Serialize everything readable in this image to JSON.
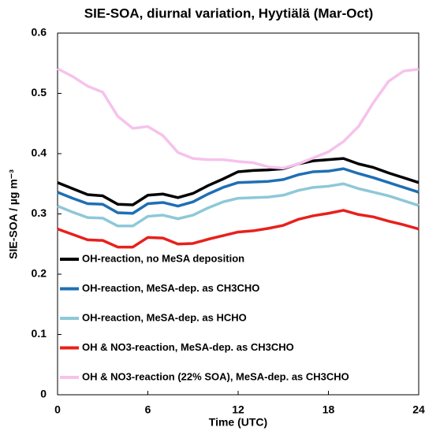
{
  "chart_data": {
    "type": "line",
    "title": "SIE-SOA, diurnal variation, Hyytiälä (Mar-Oct)",
    "x_label": "Time (UTC)",
    "y_label": "SIE-SOA / µg m⁻³",
    "x": [
      0,
      1,
      2,
      3,
      4,
      5,
      6,
      7,
      8,
      9,
      10,
      11,
      12,
      13,
      14,
      15,
      16,
      17,
      18,
      19,
      20,
      21,
      22,
      23,
      24
    ],
    "xlim": [
      0,
      24
    ],
    "xticks": [
      0,
      6,
      12,
      18,
      24
    ],
    "ylim": [
      0,
      0.6
    ],
    "yticks": [
      0,
      0.1,
      0.2,
      0.3,
      0.4,
      0.5,
      0.6
    ],
    "grid": false,
    "legend": "lower left",
    "series": [
      {
        "name": "OH-reaction, no MeSA deposition",
        "color": "#000000",
        "values": [
          0.352,
          0.342,
          0.332,
          0.33,
          0.316,
          0.315,
          0.331,
          0.333,
          0.327,
          0.334,
          0.347,
          0.358,
          0.37,
          0.372,
          0.373,
          0.375,
          0.383,
          0.388,
          0.39,
          0.392,
          0.383,
          0.377,
          0.368,
          0.36,
          0.352
        ]
      },
      {
        "name": "OH-reaction, MeSA-dep. as CH3CHO",
        "color": "#1f6fb4",
        "values": [
          0.336,
          0.326,
          0.317,
          0.316,
          0.302,
          0.301,
          0.317,
          0.319,
          0.313,
          0.32,
          0.333,
          0.344,
          0.352,
          0.353,
          0.354,
          0.357,
          0.365,
          0.37,
          0.371,
          0.375,
          0.367,
          0.36,
          0.352,
          0.344,
          0.336
        ]
      },
      {
        "name": "OH-reaction, MeSA-dep. as HCHO",
        "color": "#8ec8d8",
        "values": [
          0.313,
          0.303,
          0.294,
          0.293,
          0.28,
          0.28,
          0.296,
          0.298,
          0.292,
          0.298,
          0.31,
          0.32,
          0.326,
          0.327,
          0.328,
          0.331,
          0.339,
          0.344,
          0.346,
          0.35,
          0.342,
          0.336,
          0.33,
          0.322,
          0.314
        ]
      },
      {
        "name": "OH & NO3-reaction, MeSA-dep. as CH3CHO",
        "color": "#e8201c",
        "values": [
          0.275,
          0.266,
          0.257,
          0.256,
          0.245,
          0.245,
          0.261,
          0.26,
          0.25,
          0.251,
          0.258,
          0.264,
          0.27,
          0.272,
          0.276,
          0.281,
          0.291,
          0.297,
          0.301,
          0.306,
          0.299,
          0.295,
          0.288,
          0.282,
          0.275
        ]
      },
      {
        "name": "OH & NO3-reaction (22% SOA), MeSA-dep. as CH3CHO",
        "color": "#f6c2ec",
        "values": [
          0.541,
          0.528,
          0.512,
          0.502,
          0.462,
          0.442,
          0.445,
          0.43,
          0.402,
          0.392,
          0.39,
          0.39,
          0.387,
          0.385,
          0.378,
          0.376,
          0.383,
          0.393,
          0.403,
          0.42,
          0.445,
          0.485,
          0.52,
          0.537,
          0.54
        ]
      }
    ]
  }
}
